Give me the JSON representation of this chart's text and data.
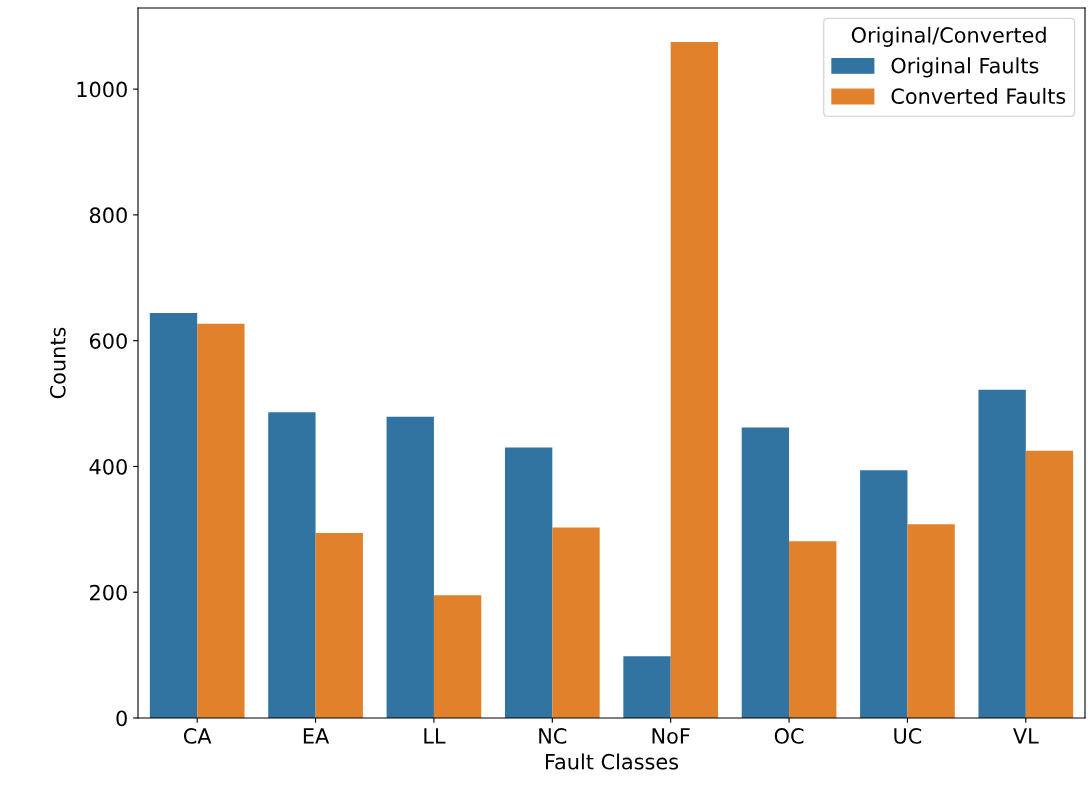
{
  "chart_data": {
    "type": "bar",
    "xlabel": "Fault Classes",
    "ylabel": "Counts",
    "legend_title": "Original/Converted",
    "categories": [
      "CA",
      "EA",
      "LL",
      "NC",
      "NoF",
      "OC",
      "UC",
      "VL"
    ],
    "series": [
      {
        "name": "Original Faults",
        "color": "#3274a1",
        "values": [
          644,
          486,
          479,
          430,
          98,
          462,
          394,
          522
        ]
      },
      {
        "name": "Converted Faults",
        "color": "#e1812c",
        "values": [
          627,
          294,
          195,
          303,
          1075,
          281,
          308,
          425
        ]
      }
    ],
    "ylim": [
      0,
      1129
    ],
    "yticks": [
      0,
      200,
      400,
      600,
      800,
      1000
    ],
    "grid": false,
    "legend": "top right"
  }
}
